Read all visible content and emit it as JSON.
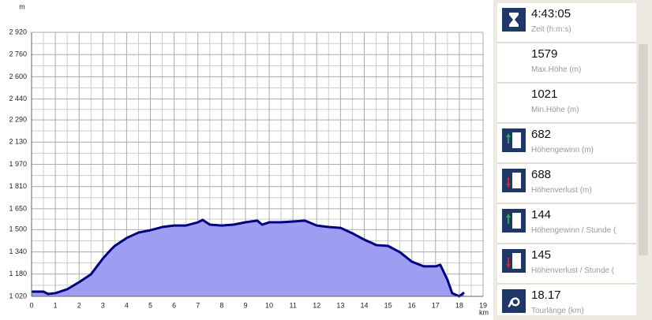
{
  "chart_data": {
    "type": "area",
    "x": [
      0,
      0.5,
      0.7,
      1.0,
      1.5,
      2.0,
      2.5,
      3.0,
      3.3,
      3.5,
      4.0,
      4.5,
      5.0,
      5.5,
      6.0,
      6.5,
      7.0,
      7.2,
      7.5,
      8.0,
      8.5,
      9.0,
      9.5,
      9.7,
      10.0,
      10.5,
      11.0,
      11.5,
      12.0,
      12.5,
      13.0,
      13.5,
      14.0,
      14.3,
      14.5,
      15.0,
      15.5,
      16.0,
      16.5,
      17.0,
      17.2,
      17.5,
      17.7,
      18.0,
      18.2
    ],
    "values": [
      1054,
      1054,
      1037,
      1043,
      1071,
      1122,
      1179,
      1292,
      1349,
      1383,
      1440,
      1479,
      1496,
      1519,
      1530,
      1530,
      1553,
      1570,
      1536,
      1530,
      1536,
      1553,
      1565,
      1536,
      1553,
      1553,
      1559,
      1565,
      1530,
      1519,
      1513,
      1474,
      1428,
      1406,
      1389,
      1383,
      1338,
      1270,
      1236,
      1236,
      1247,
      1139,
      1043,
      1020,
      1048
    ],
    "line_color": "#000080",
    "fill_color": "#9d9df2",
    "x_unit": "km",
    "y_unit": "m",
    "xlim": [
      0,
      19
    ],
    "xticks": [
      0,
      1,
      2,
      3,
      4,
      5,
      6,
      7,
      8,
      9,
      10,
      11,
      12,
      13,
      14,
      15,
      16,
      17,
      18,
      19
    ],
    "ylim": [
      1020,
      2920
    ],
    "yticks": [
      {
        "value": 1020,
        "label": "1 020"
      },
      {
        "value": 1180,
        "label": "1 180"
      },
      {
        "value": 1340,
        "label": "1 340"
      },
      {
        "value": 1500,
        "label": "1 500"
      },
      {
        "value": 1650,
        "label": "1 650"
      },
      {
        "value": 1810,
        "label": "1 810"
      },
      {
        "value": 1970,
        "label": "1 970"
      },
      {
        "value": 2130,
        "label": "2 130"
      },
      {
        "value": 2290,
        "label": "2 290"
      },
      {
        "value": 2440,
        "label": "2 440"
      },
      {
        "value": 2600,
        "label": "2 600"
      },
      {
        "value": 2760,
        "label": "2 760"
      },
      {
        "value": 2920,
        "label": "2 920"
      }
    ],
    "grid": true
  },
  "stats": [
    {
      "value": "4:43:05",
      "label": "Zeit (h:m:s)"
    },
    {
      "value": 1579,
      "label": "Max.Höhe (m)"
    },
    {
      "value": 1021,
      "label": "Min.Höhe (m)"
    },
    {
      "value": 682,
      "label": "Höhengewinn (m)"
    },
    {
      "value": 688,
      "label": "Höhenverlust (m)"
    },
    {
      "value": 144,
      "label": "Höhengewinn / Stunde ("
    },
    {
      "value": 145,
      "label": "Höhenverlust / Stunde ("
    },
    {
      "value": 18.17,
      "label": "Tourlänge (km)"
    }
  ]
}
